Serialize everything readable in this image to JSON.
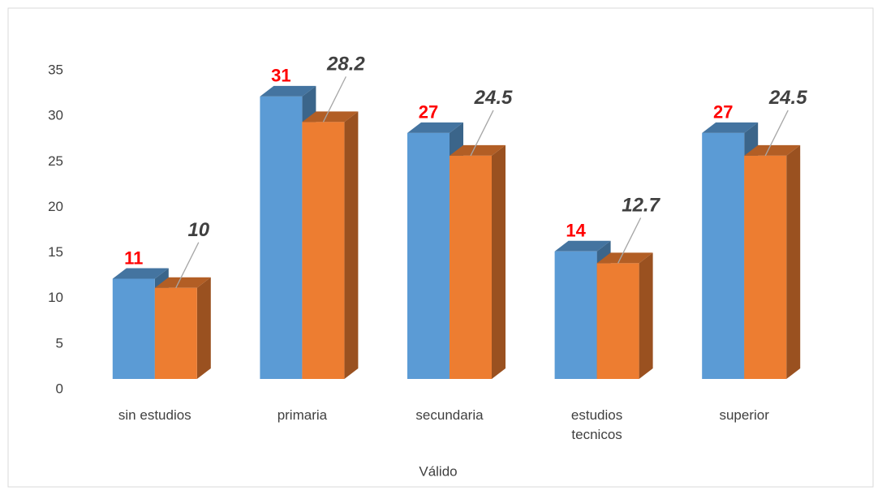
{
  "chart_data": {
    "type": "bar3d",
    "x_label": "Válido",
    "categories": [
      "sin estudios",
      "primaria",
      "secundaria",
      "estudios tecnicos",
      "superior"
    ],
    "series": [
      {
        "color": "#5b9bd5",
        "values": [
          11,
          31,
          27,
          14,
          27
        ]
      },
      {
        "color": "#ed7d31",
        "values": [
          10,
          28.2,
          24.5,
          12.7,
          24.5
        ]
      }
    ],
    "ylim": [
      0,
      35
    ],
    "yticks": [
      0,
      5,
      10,
      15,
      20,
      25,
      30,
      35
    ],
    "grid": false
  }
}
